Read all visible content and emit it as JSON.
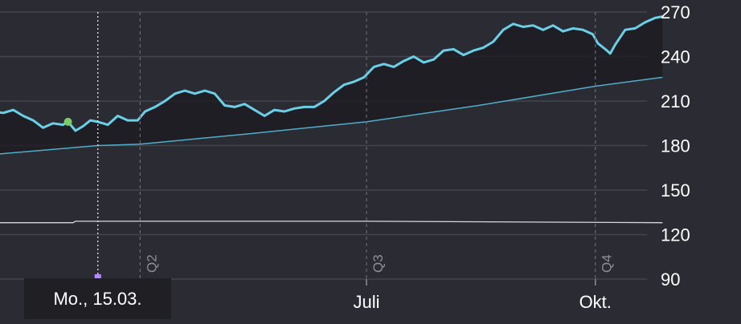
{
  "chart_data": {
    "type": "line",
    "title": "",
    "xlabel": "",
    "ylabel": "",
    "ylim": [
      90,
      270
    ],
    "y_ticks": [
      270,
      240,
      210,
      180,
      150,
      120,
      90
    ],
    "x_tick_labels": [
      {
        "label": "Juli",
        "date": "2021-07-01"
      },
      {
        "label": "Okt.",
        "date": "2021-10-01"
      }
    ],
    "quarter_markers": [
      {
        "label": "Q2",
        "date": "2021-04-01"
      },
      {
        "label": "Q3",
        "date": "2021-07-01"
      },
      {
        "label": "Q4",
        "date": "2021-10-01"
      }
    ],
    "crosshair": {
      "date": "2021-03-15",
      "label": "Mo., 15.03."
    },
    "highlight_point": {
      "date": "2021-03-03",
      "value": 196
    },
    "grid": true,
    "legend": "none",
    "series": [
      {
        "role": "price",
        "color": "#6ad0e8",
        "points": [
          [
            "2021-02-01",
            203
          ],
          [
            "2021-02-05",
            202
          ],
          [
            "2021-02-09",
            204
          ],
          [
            "2021-02-13",
            200
          ],
          [
            "2021-02-17",
            197
          ],
          [
            "2021-02-21",
            192
          ],
          [
            "2021-02-25",
            195
          ],
          [
            "2021-03-01",
            194
          ],
          [
            "2021-03-03",
            196
          ],
          [
            "2021-03-06",
            190
          ],
          [
            "2021-03-09",
            193
          ],
          [
            "2021-03-12",
            197
          ],
          [
            "2021-03-15",
            196
          ],
          [
            "2021-03-19",
            194
          ],
          [
            "2021-03-23",
            200
          ],
          [
            "2021-03-27",
            197
          ],
          [
            "2021-03-31",
            197
          ],
          [
            "2021-04-03",
            203
          ],
          [
            "2021-04-07",
            206
          ],
          [
            "2021-04-11",
            210
          ],
          [
            "2021-04-15",
            215
          ],
          [
            "2021-04-19",
            217
          ],
          [
            "2021-04-23",
            215
          ],
          [
            "2021-04-27",
            217
          ],
          [
            "2021-05-01",
            215
          ],
          [
            "2021-05-05",
            207
          ],
          [
            "2021-05-09",
            206
          ],
          [
            "2021-05-13",
            208
          ],
          [
            "2021-05-17",
            204
          ],
          [
            "2021-05-21",
            200
          ],
          [
            "2021-05-25",
            204
          ],
          [
            "2021-05-29",
            203
          ],
          [
            "2021-06-02",
            205
          ],
          [
            "2021-06-06",
            206
          ],
          [
            "2021-06-10",
            206
          ],
          [
            "2021-06-14",
            210
          ],
          [
            "2021-06-18",
            216
          ],
          [
            "2021-06-22",
            221
          ],
          [
            "2021-06-26",
            223
          ],
          [
            "2021-06-30",
            226
          ],
          [
            "2021-07-04",
            233
          ],
          [
            "2021-07-08",
            235
          ],
          [
            "2021-07-12",
            233
          ],
          [
            "2021-07-16",
            237
          ],
          [
            "2021-07-20",
            240
          ],
          [
            "2021-07-24",
            236
          ],
          [
            "2021-07-28",
            238
          ],
          [
            "2021-08-01",
            244
          ],
          [
            "2021-08-05",
            245
          ],
          [
            "2021-08-09",
            241
          ],
          [
            "2021-08-13",
            244
          ],
          [
            "2021-08-17",
            246
          ],
          [
            "2021-08-21",
            250
          ],
          [
            "2021-08-25",
            258
          ],
          [
            "2021-08-29",
            262
          ],
          [
            "2021-09-02",
            260
          ],
          [
            "2021-09-06",
            261
          ],
          [
            "2021-09-10",
            258
          ],
          [
            "2021-09-14",
            261
          ],
          [
            "2021-09-18",
            257
          ],
          [
            "2021-09-22",
            259
          ],
          [
            "2021-09-26",
            258
          ],
          [
            "2021-09-30",
            255
          ],
          [
            "2021-10-02",
            249
          ],
          [
            "2021-10-05",
            245
          ],
          [
            "2021-10-07",
            242
          ],
          [
            "2021-10-09",
            248
          ],
          [
            "2021-10-13",
            258
          ],
          [
            "2021-10-17",
            259
          ],
          [
            "2021-10-21",
            263
          ],
          [
            "2021-10-25",
            266
          ],
          [
            "2021-10-28",
            267
          ]
        ]
      },
      {
        "role": "moving-average",
        "color": "#4faec9",
        "points": [
          [
            "2021-02-01",
            174
          ],
          [
            "2021-03-15",
            180
          ],
          [
            "2021-04-01",
            181
          ],
          [
            "2021-05-15",
            188
          ],
          [
            "2021-07-01",
            196
          ],
          [
            "2021-08-15",
            207
          ],
          [
            "2021-10-01",
            220
          ],
          [
            "2021-10-28",
            226
          ]
        ]
      },
      {
        "role": "lower-band",
        "color": "#d8d8dc",
        "points": [
          [
            "2021-02-01",
            128
          ],
          [
            "2021-03-05",
            128
          ],
          [
            "2021-03-06",
            129
          ],
          [
            "2021-07-01",
            129
          ],
          [
            "2021-10-28",
            128
          ]
        ]
      }
    ]
  },
  "tooltip": {
    "label": "Mo., 15.03."
  },
  "colors": {
    "background": "#2b2b33",
    "grid": "#44444c",
    "price_line": "#6ad0e8",
    "area_fill": "#1c1c21",
    "highlight_point": "#7ec968",
    "crosshair_marker": "#b48cff",
    "tooltip_bg": "#1f1f24"
  }
}
